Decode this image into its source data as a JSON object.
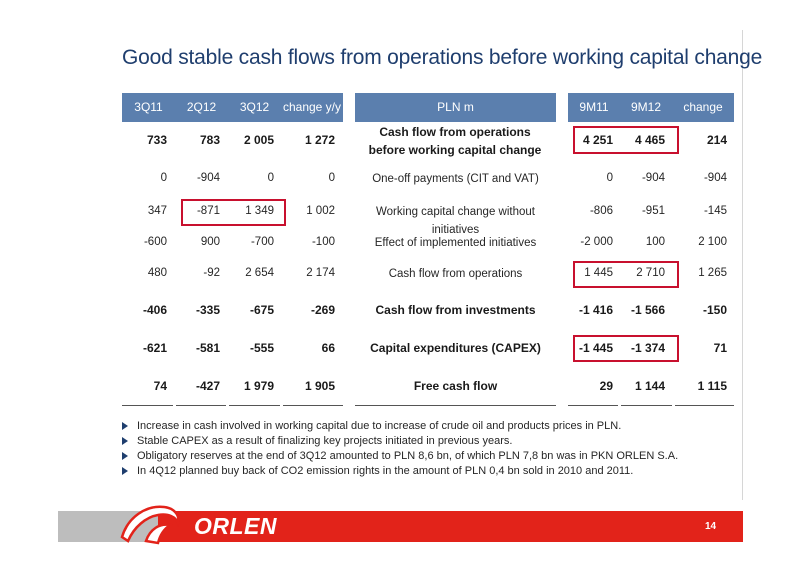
{
  "title": "Good stable cash flows from operations before working capital change",
  "header": {
    "q311": "3Q11",
    "q212": "2Q12",
    "q312": "3Q12",
    "change_yy": "change y/y",
    "label": "PLN m",
    "m911": "9M11",
    "m912": "9M12",
    "change": "change"
  },
  "rows": [
    {
      "q311": "733",
      "q212": "783",
      "q312": "2 005",
      "chg_yy": "1 272",
      "label": "Cash flow from operations before working capital change",
      "m911": "4 251",
      "m912": "4 465",
      "chg": "214",
      "bold": true
    },
    {
      "q311": "0",
      "q212": "-904",
      "q312": "0",
      "chg_yy": "0",
      "label": "One-off payments (CIT and VAT)",
      "m911": "0",
      "m912": "-904",
      "chg": "-904",
      "bold": false
    },
    {
      "q311": "347",
      "q212": "-871",
      "q312": "1 349",
      "chg_yy": "1 002",
      "label": "Working capital change without initiatives",
      "m911": "-806",
      "m912": "-951",
      "chg": "-145",
      "bold": false
    },
    {
      "q311": "-600",
      "q212": "900",
      "q312": "-700",
      "chg_yy": "-100",
      "label": "Effect of implemented initiatives",
      "m911": "-2 000",
      "m912": "100",
      "chg": "2 100",
      "bold": false
    },
    {
      "q311": "480",
      "q212": "-92",
      "q312": "2 654",
      "chg_yy": "2 174",
      "label": "Cash flow from operations",
      "m911": "1 445",
      "m912": "2 710",
      "chg": "1 265",
      "bold": false
    },
    {
      "q311": "-406",
      "q212": "-335",
      "q312": "-675",
      "chg_yy": "-269",
      "label": "Cash flow from investments",
      "m911": "-1 416",
      "m912": "-1 566",
      "chg": "-150",
      "bold": true
    },
    {
      "q311": "-621",
      "q212": "-581",
      "q312": "-555",
      "chg_yy": "66",
      "label": "Capital expenditures (CAPEX)",
      "m911": "-1 445",
      "m912": "-1 374",
      "chg": "71",
      "bold": true
    },
    {
      "q311": "74",
      "q212": "-427",
      "q312": "1 979",
      "chg_yy": "1 905",
      "label": "Free cash flow",
      "m911": "29",
      "m912": "1 144",
      "chg": "1 115",
      "bold": true
    }
  ],
  "bullets": [
    "Increase in cash involved in working capital due to increase of crude oil and products prices in PLN.",
    "Stable CAPEX  as a result of finalizing key projects initiated in previous years.",
    "Obligatory reserves at the end of 3Q12 amounted to PLN 8,6 bn, of which PLN 7,8 bn was in PKN ORLEN S.A.",
    "In 4Q12 planned buy back of CO2 emission rights in the amount of PLN 0,4 bn sold in 2010 and 2011."
  ],
  "footer": {
    "logo_text": "ORLEN",
    "page_number": "14"
  },
  "colors": {
    "header_bg": "#5b7fae",
    "title": "#1f3e6e",
    "highlight_box": "#c8102e",
    "footer_red": "#e2231a",
    "footer_grey": "#bdbdbd"
  }
}
